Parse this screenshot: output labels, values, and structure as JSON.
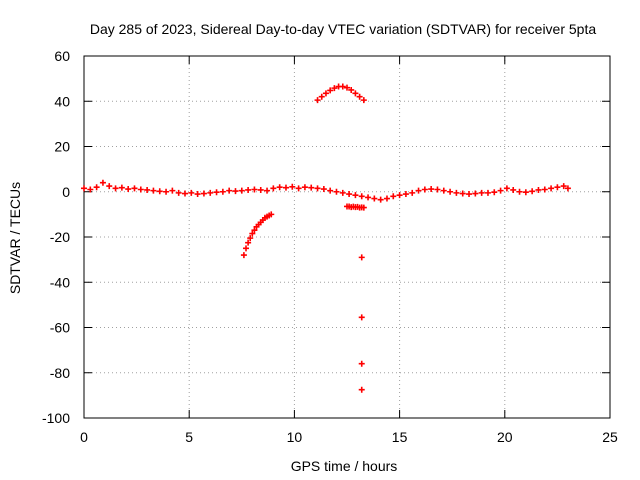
{
  "chart_data": {
    "type": "scatter",
    "title": "Day 285 of 2023, Sidereal Day-to-day VTEC variation (SDTVAR) for receiver 5pta",
    "xlabel": "GPS time / hours",
    "ylabel": "SDTVAR / TECUs",
    "xlim": [
      0,
      25
    ],
    "ylim": [
      -100,
      60
    ],
    "xticks": [
      0,
      5,
      10,
      15,
      20,
      25
    ],
    "yticks": [
      -100,
      -80,
      -60,
      -40,
      -20,
      0,
      20,
      40,
      60
    ],
    "grid": true,
    "marker": "plus",
    "color": "#ff0000",
    "series": [
      {
        "name": "main-band",
        "x": [
          0.0,
          0.3,
          0.6,
          0.9,
          1.2,
          1.5,
          1.8,
          2.1,
          2.4,
          2.7,
          3.0,
          3.3,
          3.6,
          3.9,
          4.2,
          4.5,
          4.8,
          5.1,
          5.4,
          5.7,
          6.0,
          6.3,
          6.6,
          6.9,
          7.2,
          7.5,
          7.8,
          8.1,
          8.4,
          8.7,
          9.0,
          9.3,
          9.6,
          9.9,
          10.2,
          10.5,
          10.8,
          11.1,
          11.4,
          11.7,
          12.0,
          12.3,
          12.6,
          12.9,
          13.2,
          13.5,
          13.8,
          14.1,
          14.4,
          14.7,
          15.0,
          15.3,
          15.6,
          15.9,
          16.2,
          16.5,
          16.8,
          17.1,
          17.4,
          17.7,
          18.0,
          18.3,
          18.6,
          18.9,
          19.2,
          19.5,
          19.8,
          20.1,
          20.4,
          20.7,
          21.0,
          21.3,
          21.6,
          21.9,
          22.2,
          22.5,
          22.8,
          23.0
        ],
        "y": [
          1.5,
          1.0,
          2.0,
          4.0,
          2.5,
          1.5,
          1.8,
          1.2,
          1.5,
          1.0,
          0.8,
          0.5,
          0.2,
          0.0,
          0.5,
          -0.5,
          -0.8,
          -0.5,
          -1.0,
          -0.8,
          -0.5,
          -0.2,
          0.0,
          0.5,
          0.3,
          0.5,
          0.8,
          1.0,
          0.8,
          0.5,
          1.5,
          2.0,
          1.8,
          2.2,
          1.5,
          2.0,
          1.8,
          1.5,
          1.2,
          0.5,
          0.0,
          -0.5,
          -1.0,
          -1.5,
          -2.0,
          -2.5,
          -3.0,
          -3.5,
          -3.0,
          -2.0,
          -1.5,
          -1.0,
          -0.5,
          0.5,
          1.0,
          1.2,
          1.0,
          0.5,
          0.0,
          -0.5,
          -0.8,
          -1.0,
          -0.8,
          -0.5,
          -0.5,
          -0.2,
          0.5,
          1.5,
          0.8,
          0.0,
          -0.2,
          0.2,
          0.8,
          1.0,
          1.5,
          2.0,
          2.5,
          1.5
        ]
      },
      {
        "name": "lower-arc",
        "x": [
          7.6,
          7.7,
          7.8,
          7.9,
          8.0,
          8.1,
          8.2,
          8.3,
          8.4,
          8.5,
          8.6,
          8.7,
          8.8,
          8.9
        ],
        "y": [
          -28,
          -25,
          -22.5,
          -20.5,
          -18.5,
          -17,
          -15.5,
          -14.5,
          -13.5,
          -12.5,
          -11.5,
          -11,
          -10.5,
          -10
        ]
      },
      {
        "name": "upper-arc",
        "x": [
          11.1,
          11.3,
          11.5,
          11.7,
          11.9,
          12.1,
          12.3,
          12.5,
          12.7,
          12.9,
          13.1,
          13.3
        ],
        "y": [
          40.5,
          42.0,
          43.5,
          44.8,
          45.8,
          46.5,
          46.5,
          46.0,
          45.0,
          43.5,
          42.0,
          40.5
        ]
      },
      {
        "name": "negative-segment",
        "x": [
          12.5,
          12.6,
          12.7,
          12.8,
          12.9,
          13.0,
          13.1,
          13.2,
          13.3
        ],
        "y": [
          -6.5,
          -6.5,
          -6.8,
          -6.6,
          -6.8,
          -6.7,
          -7.0,
          -6.9,
          -7.0
        ]
      },
      {
        "name": "isolated-points",
        "x": [
          13.2,
          13.2,
          13.2,
          13.2
        ],
        "y": [
          -29,
          -55.5,
          -76,
          -87.5
        ]
      }
    ]
  }
}
